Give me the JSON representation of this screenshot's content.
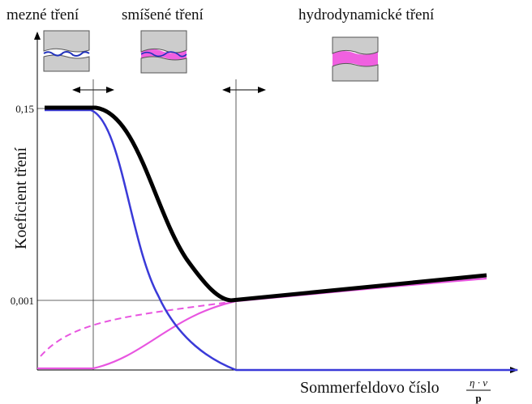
{
  "header": {
    "regimes": [
      "mezné tření",
      "smíšené tření",
      "hydrodynamické tření"
    ]
  },
  "axes": {
    "y_label": "Koeficient tření",
    "y_ticks": [
      "0,15",
      "0,001"
    ],
    "x_label": "Sommerfeldovo číslo",
    "x_formula_numerator": "η · v",
    "x_formula_denominator": "p"
  }
}
